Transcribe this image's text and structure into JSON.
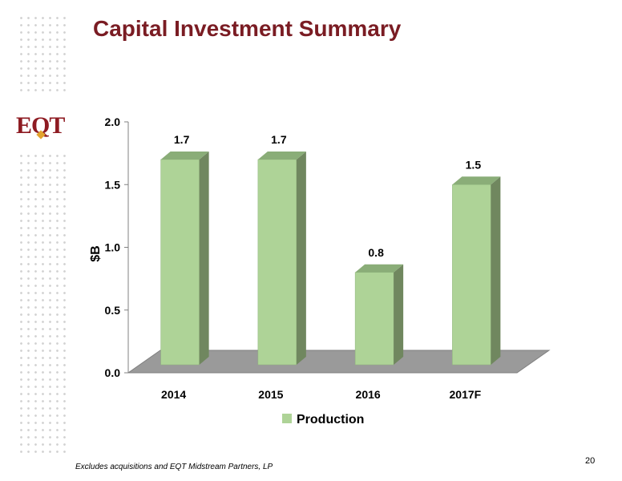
{
  "slide": {
    "title": "Capital Investment Summary",
    "logo_text": "EQT",
    "footnote": "Excludes acquisitions and EQT Midstream Partners, LP",
    "page_number": "20"
  },
  "colors": {
    "title": "#7a1c23",
    "bar_front": "#aed397",
    "bar_side": "#70875f",
    "bar_top": "#8aad78",
    "floor": "#9a9a9a",
    "logo": "#8e1b22",
    "logo_accent": "#e3a32d"
  },
  "chart_data": {
    "type": "bar",
    "categories": [
      "2014",
      "2015",
      "2016",
      "2017F"
    ],
    "series": [
      {
        "name": "Production",
        "values": [
          1.7,
          1.7,
          0.8,
          1.5
        ]
      }
    ],
    "data_labels": [
      "1.7",
      "1.7",
      "0.8",
      "1.5"
    ],
    "y_ticks": [
      "0.0",
      "0.5",
      "1.0",
      "1.5",
      "2.0"
    ],
    "ylabel": "$B",
    "ylim": [
      0,
      2.0
    ],
    "legend_position": "bottom",
    "grid": false,
    "style": "3d-column"
  }
}
